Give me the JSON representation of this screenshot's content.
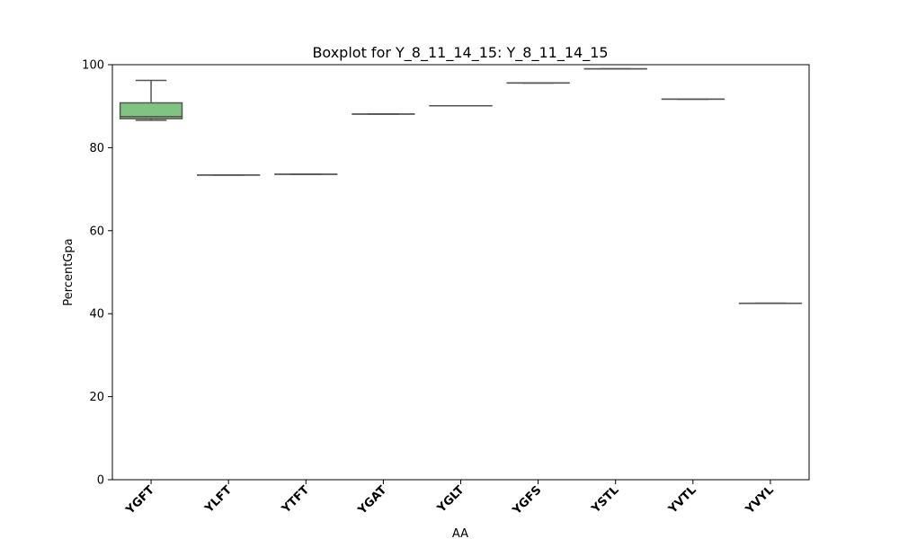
{
  "chart_data": {
    "type": "box",
    "title": "Boxplot for Y_8_11_14_15: Y_8_11_14_15",
    "xlabel": "AA",
    "ylabel": "PercentGpa",
    "ylim": [
      0,
      100
    ],
    "yticks": [
      "0",
      "20",
      "40",
      "60",
      "80",
      "100"
    ],
    "grid": false,
    "box_color": "#7fc47f",
    "line_color": "#555555",
    "categories": [
      "YGFT",
      "YLFT",
      "YTFT",
      "YGAT",
      "YGLT",
      "YGFS",
      "YSTL",
      "YVTL",
      "YVYL"
    ],
    "boxes": [
      {
        "category": "YGFT",
        "min": 86.6,
        "q1": 87.0,
        "median": 87.5,
        "q3": 90.8,
        "max": 96.2
      },
      {
        "category": "YLFT",
        "min": 73.4,
        "q1": 73.4,
        "median": 73.4,
        "q3": 73.4,
        "max": 73.4
      },
      {
        "category": "YTFT",
        "min": 73.6,
        "q1": 73.6,
        "median": 73.6,
        "q3": 73.6,
        "max": 73.6
      },
      {
        "category": "YGAT",
        "min": 88.1,
        "q1": 88.1,
        "median": 88.1,
        "q3": 88.1,
        "max": 88.1
      },
      {
        "category": "YGLT",
        "min": 90.1,
        "q1": 90.1,
        "median": 90.1,
        "q3": 90.1,
        "max": 90.1
      },
      {
        "category": "YGFS",
        "min": 95.6,
        "q1": 95.6,
        "median": 95.6,
        "q3": 95.6,
        "max": 95.6
      },
      {
        "category": "YSTL",
        "min": 99.0,
        "q1": 99.0,
        "median": 99.0,
        "q3": 99.0,
        "max": 99.0
      },
      {
        "category": "YVTL",
        "min": 91.7,
        "q1": 91.7,
        "median": 91.7,
        "q3": 91.7,
        "max": 91.7
      },
      {
        "category": "YVYL",
        "min": 42.5,
        "q1": 42.5,
        "median": 42.5,
        "q3": 42.5,
        "max": 42.5
      }
    ]
  }
}
